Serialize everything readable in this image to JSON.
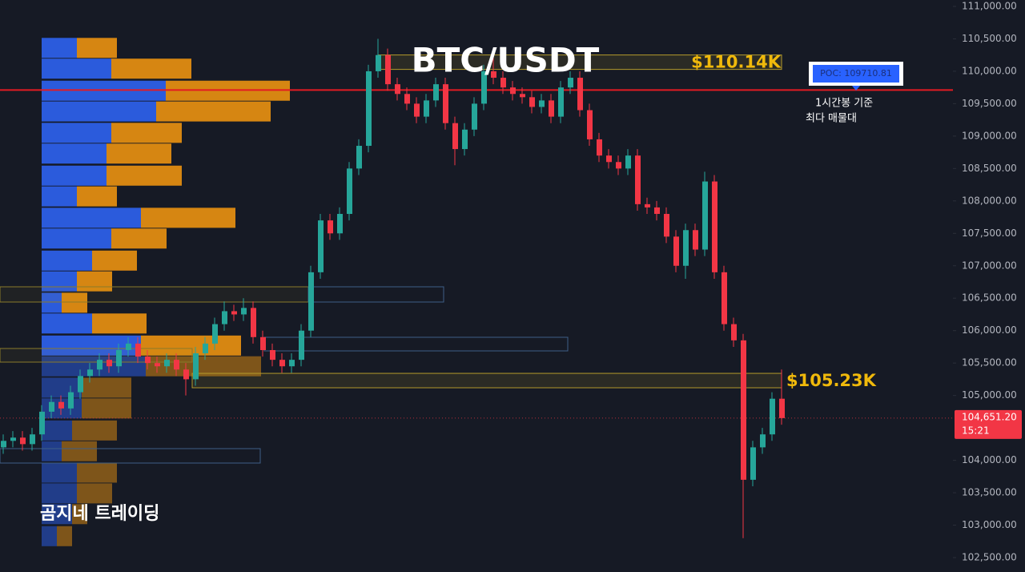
{
  "chart_data": {
    "type": "candlestick",
    "title": "BTC/USDT",
    "watermark": "곰지네 트레이딩",
    "ylim": [
      102400,
      111080
    ],
    "yticks": [
      {
        "value": 102500,
        "label": "102,500.00"
      },
      {
        "value": 103000,
        "label": "103,000.00"
      },
      {
        "value": 103500,
        "label": "103,500.00"
      },
      {
        "value": 104000,
        "label": "104,000.00"
      },
      {
        "value": 105000,
        "label": "105,000.00"
      },
      {
        "value": 105500,
        "label": "105,500.00"
      },
      {
        "value": 106000,
        "label": "106,000.00"
      },
      {
        "value": 106500,
        "label": "106,500.00"
      },
      {
        "value": 107000,
        "label": "107,000.00"
      },
      {
        "value": 107500,
        "label": "107,500.00"
      },
      {
        "value": 108000,
        "label": "108,000.00"
      },
      {
        "value": 108500,
        "label": "108,500.00"
      },
      {
        "value": 109000,
        "label": "109,000.00"
      },
      {
        "value": 109500,
        "label": "109,500.00"
      },
      {
        "value": 110000,
        "label": "110,000.00"
      },
      {
        "value": 110500,
        "label": "110,500.00"
      },
      {
        "value": 111000,
        "label": "111,000.00"
      }
    ],
    "grid": false,
    "up_color": "#26a69a",
    "down_color": "#f23645",
    "open": [
      104200,
      104300,
      104350,
      104250,
      104400,
      104750,
      104900,
      104800,
      105050,
      105300,
      105400,
      105550,
      105450,
      105700,
      105800,
      105600,
      105500,
      105450,
      105550,
      105400,
      105250,
      105650,
      105800,
      106100,
      106300,
      106250,
      106350,
      105900,
      105700,
      105550,
      105450,
      105550,
      106000,
      106900,
      107700,
      107500,
      107800,
      108500,
      108850,
      110000,
      110250,
      109800,
      109650,
      109500,
      109300,
      109550,
      109800,
      109200,
      108800,
      109100,
      109500,
      110000,
      109900,
      109750,
      109650,
      109600,
      109450,
      109550,
      109300,
      109750,
      109900,
      109400,
      108950,
      108700,
      108600,
      108500,
      108700,
      107950,
      107900,
      107800,
      107450,
      107000,
      107550,
      107250,
      108300,
      106900,
      106100,
      105850,
      103700,
      104200,
      104400,
      104950
    ],
    "high": [
      104400,
      104450,
      104450,
      104500,
      104850,
      105000,
      105000,
      105150,
      105400,
      105500,
      105650,
      105650,
      105800,
      105900,
      105900,
      105700,
      105600,
      105650,
      105650,
      105500,
      105750,
      105900,
      106200,
      106450,
      106400,
      106500,
      106450,
      106000,
      105800,
      105650,
      105650,
      106100,
      107000,
      107800,
      107800,
      107900,
      108600,
      108950,
      110100,
      110500,
      110350,
      109900,
      109750,
      109600,
      109650,
      109900,
      109900,
      109300,
      109200,
      109600,
      110100,
      110250,
      110000,
      109850,
      109750,
      109700,
      109650,
      109650,
      109850,
      110000,
      110000,
      109500,
      109050,
      108800,
      108700,
      108800,
      108800,
      108050,
      108000,
      107900,
      107550,
      107650,
      107650,
      108450,
      108400,
      107000,
      106200,
      105950,
      104300,
      104500,
      105050,
      105400
    ],
    "low": [
      104100,
      104200,
      104150,
      104150,
      104300,
      104650,
      104700,
      104700,
      104950,
      105200,
      105300,
      105350,
      105350,
      105600,
      105500,
      105400,
      105350,
      105350,
      105300,
      105000,
      105150,
      105550,
      105700,
      106000,
      106150,
      106150,
      105800,
      105600,
      105450,
      105350,
      105350,
      105450,
      105900,
      106800,
      107400,
      107400,
      107700,
      108400,
      108750,
      109900,
      109700,
      109550,
      109400,
      109200,
      109200,
      109450,
      109100,
      108550,
      108700,
      109000,
      109400,
      109800,
      109650,
      109550,
      109500,
      109350,
      109350,
      109200,
      109200,
      109650,
      109300,
      108850,
      108600,
      108500,
      108400,
      108400,
      107850,
      107800,
      107700,
      107350,
      106900,
      106800,
      107150,
      107150,
      106800,
      106000,
      105750,
      102800,
      103600,
      104100,
      104300,
      104550
    ],
    "close": [
      104300,
      104350,
      104250,
      104400,
      104750,
      104900,
      104800,
      105050,
      105300,
      105400,
      105550,
      105450,
      105700,
      105800,
      105600,
      105500,
      105450,
      105550,
      105400,
      105250,
      105650,
      105800,
      106100,
      106300,
      106250,
      106350,
      105900,
      105700,
      105550,
      105450,
      105550,
      106000,
      106900,
      107700,
      107500,
      107800,
      108500,
      108850,
      110000,
      110250,
      109800,
      109650,
      109500,
      109300,
      109550,
      109800,
      109200,
      108800,
      109100,
      109500,
      110000,
      109900,
      109750,
      109650,
      109600,
      109450,
      109550,
      109300,
      109750,
      109900,
      109400,
      108950,
      108700,
      108600,
      108500,
      108700,
      107950,
      107900,
      107800,
      107450,
      107000,
      107550,
      107250,
      108300,
      106900,
      106100,
      105850,
      103700,
      104200,
      104400,
      104950,
      104651.2
    ],
    "volume_profile": {
      "levels": [
        110360,
        110040,
        109700,
        109380,
        109050,
        108730,
        108390,
        108070,
        107740,
        107420,
        107080,
        106760,
        106430,
        106110,
        105770,
        105450,
        105120,
        104800,
        104460,
        104140,
        103810,
        103490,
        103170,
        102830
      ],
      "buy_color": "#2b5bdc",
      "sell_color": "#d68612",
      "buy": [
        44,
        87,
        155,
        143,
        87,
        81,
        81,
        44,
        124,
        87,
        63,
        44,
        25,
        63,
        124,
        130,
        50,
        50,
        38,
        25,
        44,
        44,
        38,
        19
      ],
      "sell": [
        50,
        100,
        155,
        143,
        88,
        81,
        94,
        50,
        118,
        69,
        56,
        44,
        32,
        68,
        125,
        144,
        62,
        62,
        56,
        44,
        50,
        44,
        19,
        19
      ]
    },
    "poc": {
      "value": 109710.81,
      "label": "POC: 109710.81",
      "color": "#e31b23"
    },
    "poc_note": [
      "1시간봉 기준",
      "최다 매물대"
    ],
    "price_zones": [
      {
        "value": 110140,
        "label": "$110.14K"
      },
      {
        "value": 105230,
        "label": "$105.23K"
      }
    ],
    "last_price": {
      "value": 104651.2,
      "label": "104,651.20",
      "countdown": "15:21",
      "color": "#f23645"
    }
  }
}
